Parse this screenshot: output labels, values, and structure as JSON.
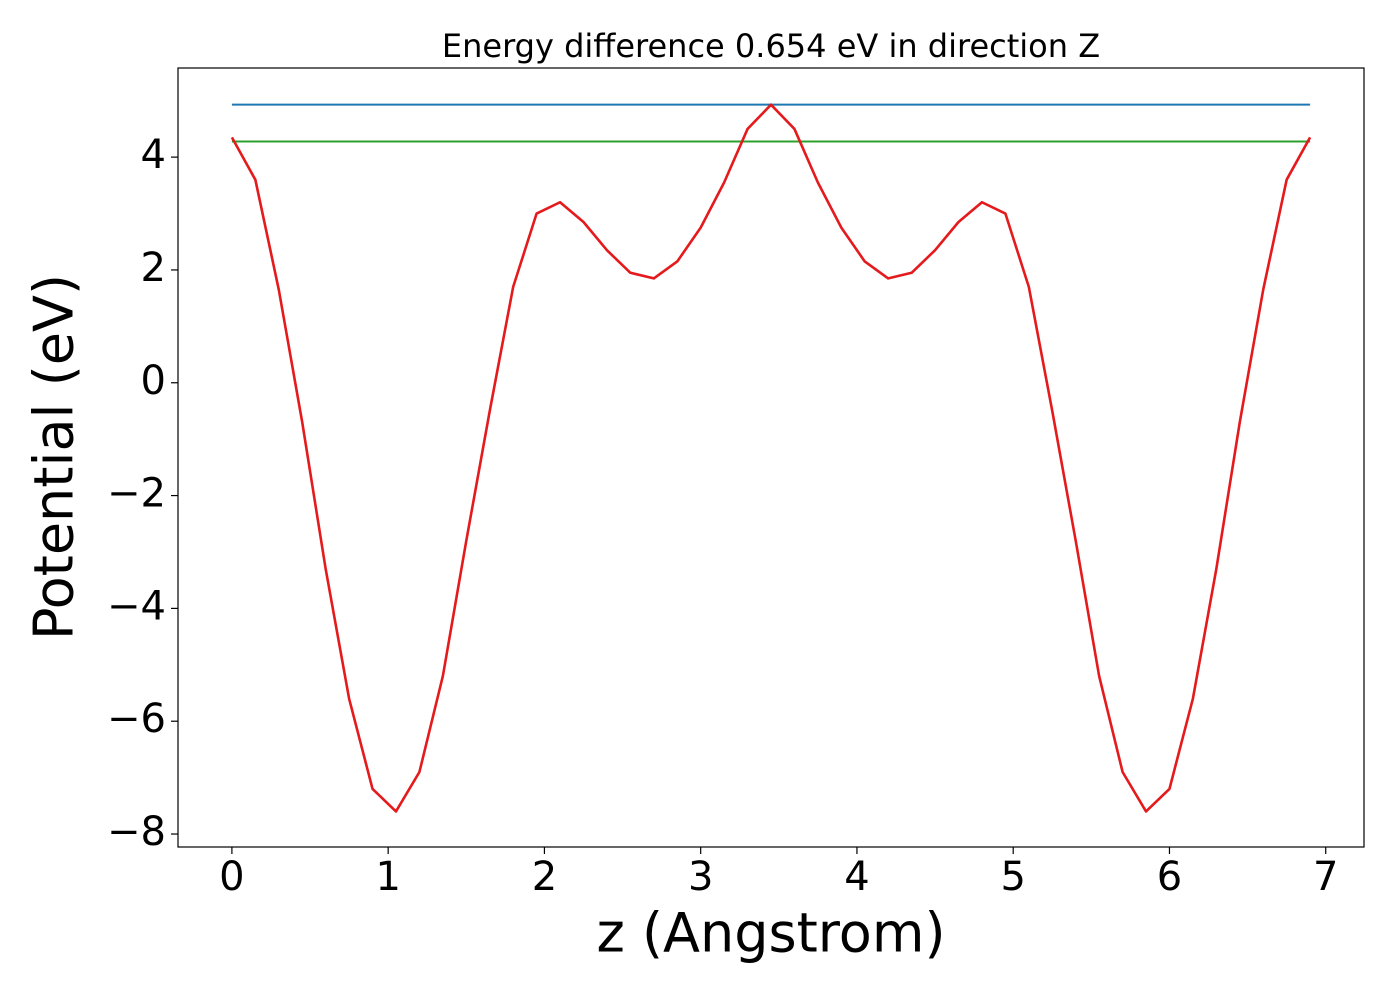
{
  "chart_data": {
    "type": "line",
    "title": "Energy difference 0.654 eV in direction Z",
    "xlabel": "z (Angstrom)",
    "ylabel": "Potential (eV)",
    "xlim": [
      -0.345,
      7.245
    ],
    "ylim": [
      -8.23,
      5.58
    ],
    "xticks": [
      0,
      1,
      2,
      3,
      4,
      5,
      6,
      7
    ],
    "yticks": [
      {
        "value": -8,
        "label": "−8"
      },
      {
        "value": -6,
        "label": "−6"
      },
      {
        "value": -4,
        "label": "−4"
      },
      {
        "value": -2,
        "label": "−2"
      },
      0,
      2,
      4
    ],
    "grid": false,
    "series": [
      {
        "color": "#1f77b4",
        "x": [
          0,
          6.9
        ],
        "values": [
          4.93,
          4.93
        ]
      },
      {
        "color": "#2ca02c",
        "x": [
          0,
          6.9
        ],
        "values": [
          4.276,
          4.276
        ]
      },
      {
        "color": "#e41a1c",
        "x": [
          0,
          0.15,
          0.3,
          0.45,
          0.6,
          0.75,
          0.9,
          1.05,
          1.2,
          1.35,
          1.5,
          1.65,
          1.8,
          1.95,
          2.1,
          2.25,
          2.4,
          2.55,
          2.7,
          2.85,
          3.0,
          3.15,
          3.3,
          3.45,
          3.6,
          3.75,
          3.9,
          4.05,
          4.2,
          4.35,
          4.5,
          4.65,
          4.8,
          4.95,
          5.1,
          5.25,
          5.4,
          5.55,
          5.7,
          5.85,
          6.0,
          6.15,
          6.3,
          6.45,
          6.6,
          6.75,
          6.9
        ],
        "values": [
          4.35,
          3.6,
          1.65,
          -0.7,
          -3.3,
          -5.6,
          -7.2,
          -7.6,
          -6.9,
          -5.2,
          -2.8,
          -0.5,
          1.7,
          3.0,
          3.2,
          2.85,
          2.35,
          1.95,
          1.85,
          2.15,
          2.75,
          3.55,
          4.5,
          4.93,
          4.5,
          3.55,
          2.75,
          2.15,
          1.85,
          1.95,
          2.35,
          2.85,
          3.2,
          3.0,
          1.7,
          -0.5,
          -2.8,
          -5.2,
          -6.9,
          -7.6,
          -7.2,
          -5.6,
          -3.3,
          -0.7,
          1.65,
          3.6,
          4.35
        ]
      }
    ]
  }
}
